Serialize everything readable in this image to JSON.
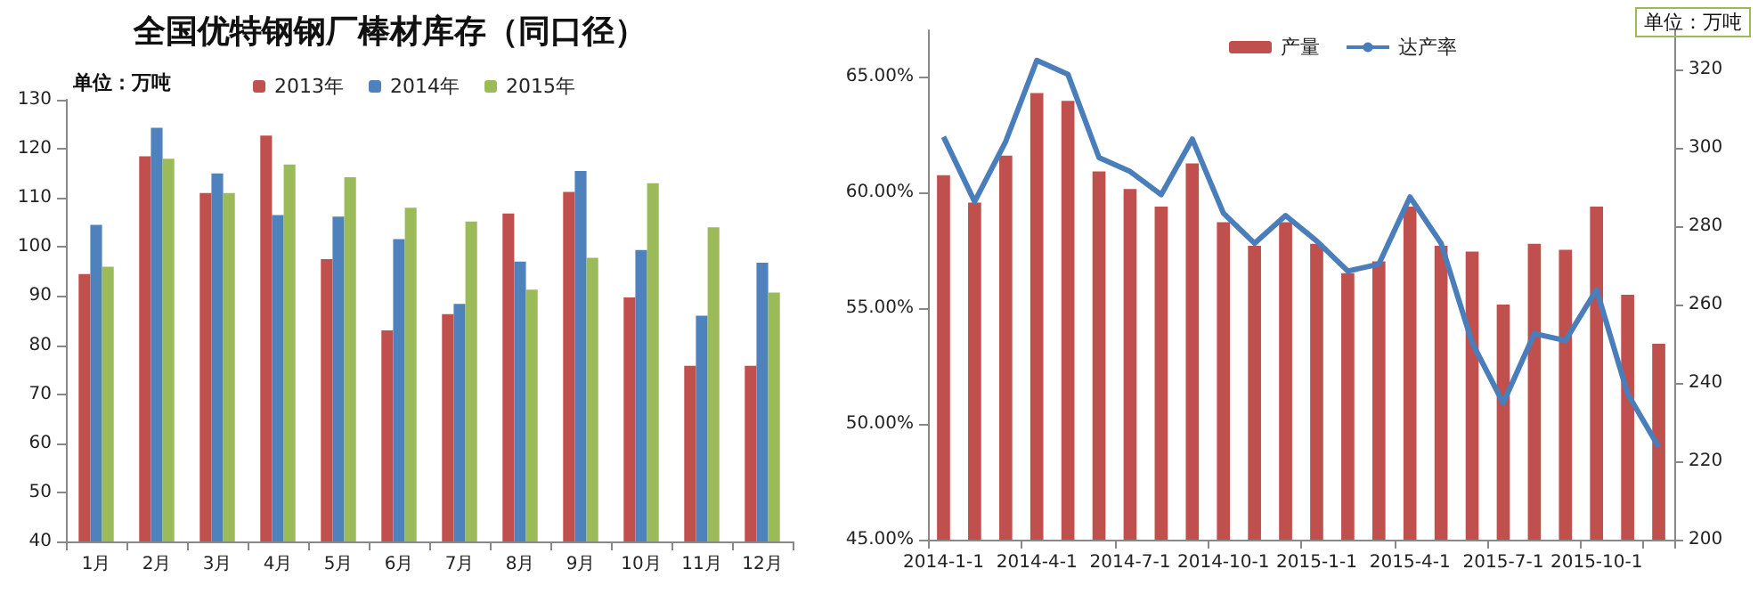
{
  "chart_data": [
    {
      "type": "bar",
      "title": "全国优特钢钢厂棒材库存（同口径）",
      "annotations": [
        "单位：万吨"
      ],
      "categories": [
        "1月",
        "2月",
        "3月",
        "4月",
        "5月",
        "6月",
        "7月",
        "8月",
        "9月",
        "10月",
        "11月",
        "12月"
      ],
      "series": [
        {
          "name": "2013年",
          "color": "#c0504d",
          "values": [
            94.5,
            118.5,
            111,
            122.7,
            97.5,
            83,
            86.3,
            106.8,
            111.2,
            89.7,
            75.8,
            75.8
          ]
        },
        {
          "name": "2014年",
          "color": "#4f81bd",
          "values": [
            104.5,
            124.3,
            115,
            106.5,
            106.2,
            101.6,
            88.4,
            97,
            115.5,
            99.4,
            86,
            96.8
          ]
        },
        {
          "name": "2015年",
          "color": "#9bbb59",
          "values": [
            96,
            118,
            111,
            116.8,
            114.2,
            108,
            105.2,
            91.3,
            97.8,
            113,
            104,
            90.7
          ]
        }
      ],
      "ylim": [
        40,
        130
      ],
      "yticks": [
        40,
        50,
        60,
        70,
        80,
        90,
        100,
        110,
        120,
        130
      ],
      "grid": false,
      "legend": "top"
    },
    {
      "type": "bar",
      "annotations": [
        "单位：万吨"
      ],
      "categories": [
        "2014-1-1",
        null,
        null,
        "2014-4-1",
        null,
        null,
        "2014-7-1",
        null,
        null,
        "2014-10-1",
        null,
        null,
        "2015-1-1",
        null,
        null,
        "2015-4-1",
        null,
        null,
        "2015-7-1",
        null,
        null,
        "2015-10-1",
        null,
        null
      ],
      "series": [
        {
          "name": "产量",
          "type": "bar",
          "axis": "y2",
          "color": "#c0504d",
          "values": [
            293,
            286,
            298,
            314,
            312,
            294,
            289.5,
            285,
            296,
            281,
            275,
            281,
            275.5,
            268,
            271,
            285,
            275,
            273.5,
            260,
            275.5,
            274,
            285,
            262.5,
            250
          ]
        },
        {
          "name": "达产率",
          "type": "line",
          "axis": "y",
          "color": "#4a7ebb",
          "values": [
            62.4,
            59.6,
            62.2,
            65.7,
            65.1,
            61.5,
            60.9,
            59.9,
            62.3,
            59.1,
            57.8,
            59.0,
            57.9,
            56.6,
            56.9,
            59.8,
            57.8,
            53.5,
            50.9,
            53.9,
            53.6,
            55.8,
            51.3,
            49.0
          ]
        }
      ],
      "ylim": [
        45,
        67
      ],
      "yticks": [
        {
          "value": 45,
          "label": "45.00%"
        },
        {
          "value": 50,
          "label": "50.00%"
        },
        {
          "value": 55,
          "label": "55.00%"
        },
        {
          "value": 60,
          "label": "60.00%"
        },
        {
          "value": 65,
          "label": "65.00%"
        }
      ],
      "y2lim": [
        200,
        330
      ],
      "y2ticks": [
        200,
        220,
        240,
        260,
        280,
        300,
        320
      ],
      "grid": false,
      "legend": "top",
      "marker": "none"
    }
  ]
}
